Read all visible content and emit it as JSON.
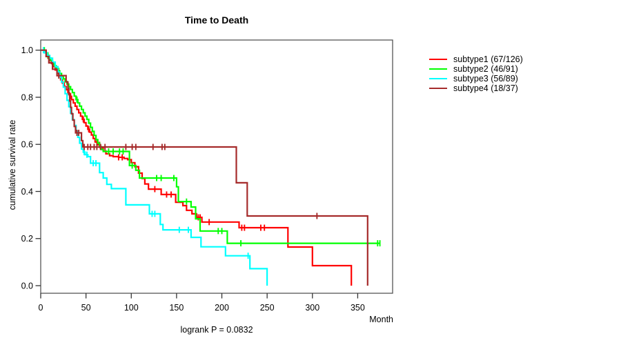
{
  "chart_data": {
    "type": "line",
    "title": "Time to Death",
    "subtitle": "logrank P = 0.0832",
    "xlabel": "Month",
    "ylabel": "cumulative survival rate",
    "x_ticks": [
      "0",
      "50",
      "100",
      "150",
      "200",
      "250",
      "300",
      "350"
    ],
    "y_ticks": [
      "0.0",
      "0.2",
      "0.4",
      "0.6",
      "0.8",
      "1.0"
    ],
    "xlim": [
      0,
      388
    ],
    "ylim": [
      0.0,
      1.0
    ],
    "grid": false,
    "legend_position": "right-outside",
    "curve_style": "kaplan-meier-steps",
    "series": [
      {
        "name": "subtype1",
        "label": "subtype1 (67/126)",
        "color": "#ff0000",
        "steps": [
          [
            0,
            1.0
          ],
          [
            4,
            0.99
          ],
          [
            6,
            0.976
          ],
          [
            8,
            0.966
          ],
          [
            10,
            0.955
          ],
          [
            12,
            0.943
          ],
          [
            14,
            0.93
          ],
          [
            16,
            0.916
          ],
          [
            18,
            0.902
          ],
          [
            20,
            0.888
          ],
          [
            22,
            0.874
          ],
          [
            24,
            0.86
          ],
          [
            26,
            0.846
          ],
          [
            28,
            0.832
          ],
          [
            30,
            0.818
          ],
          [
            32,
            0.804
          ],
          [
            34,
            0.79
          ],
          [
            36,
            0.776
          ],
          [
            38,
            0.762
          ],
          [
            40,
            0.748
          ],
          [
            42,
            0.734
          ],
          [
            44,
            0.72
          ],
          [
            46,
            0.706
          ],
          [
            48,
            0.692
          ],
          [
            50,
            0.678
          ],
          [
            52,
            0.664
          ],
          [
            54,
            0.652
          ],
          [
            56,
            0.64
          ],
          [
            58,
            0.625
          ],
          [
            60,
            0.61
          ],
          [
            63,
            0.598
          ],
          [
            66,
            0.585
          ],
          [
            69,
            0.572
          ],
          [
            72,
            0.56
          ],
          [
            76,
            0.552
          ],
          [
            80,
            0.548
          ],
          [
            86,
            0.545
          ],
          [
            92,
            0.54
          ],
          [
            96,
            0.535
          ],
          [
            100,
            0.522
          ],
          [
            104,
            0.505
          ],
          [
            108,
            0.478
          ],
          [
            112,
            0.455
          ],
          [
            115,
            0.432
          ],
          [
            119,
            0.41
          ],
          [
            133,
            0.387
          ],
          [
            149,
            0.354
          ],
          [
            157,
            0.34
          ],
          [
            161,
            0.32
          ],
          [
            167,
            0.305
          ],
          [
            172,
            0.29
          ],
          [
            178,
            0.27
          ],
          [
            219,
            0.246
          ],
          [
            273,
            0.164
          ],
          [
            300,
            0.085
          ],
          [
            343,
            0.0
          ]
        ],
        "censors": [
          [
            33,
            0.804
          ],
          [
            47,
            0.706
          ],
          [
            53,
            0.664
          ],
          [
            62,
            0.61
          ],
          [
            65,
            0.598
          ],
          [
            86,
            0.545
          ],
          [
            90,
            0.545
          ],
          [
            126,
            0.41
          ],
          [
            139,
            0.387
          ],
          [
            144,
            0.387
          ],
          [
            174,
            0.29
          ],
          [
            176,
            0.29
          ],
          [
            186,
            0.27
          ],
          [
            222,
            0.246
          ],
          [
            225,
            0.246
          ],
          [
            243,
            0.246
          ],
          [
            247,
            0.246
          ]
        ]
      },
      {
        "name": "subtype2",
        "label": "subtype2 (46/91)",
        "color": "#00ff00",
        "steps": [
          [
            0,
            1.0
          ],
          [
            5,
            0.989
          ],
          [
            7,
            0.978
          ],
          [
            9,
            0.967
          ],
          [
            11,
            0.956
          ],
          [
            13,
            0.945
          ],
          [
            15,
            0.934
          ],
          [
            17,
            0.923
          ],
          [
            19,
            0.912
          ],
          [
            21,
            0.901
          ],
          [
            23,
            0.89
          ],
          [
            25,
            0.878
          ],
          [
            27,
            0.867
          ],
          [
            29,
            0.856
          ],
          [
            31,
            0.845
          ],
          [
            33,
            0.833
          ],
          [
            35,
            0.82
          ],
          [
            37,
            0.805
          ],
          [
            39,
            0.79
          ],
          [
            41,
            0.776
          ],
          [
            43,
            0.762
          ],
          [
            45,
            0.748
          ],
          [
            47,
            0.734
          ],
          [
            49,
            0.72
          ],
          [
            51,
            0.706
          ],
          [
            53,
            0.69
          ],
          [
            55,
            0.672
          ],
          [
            57,
            0.655
          ],
          [
            59,
            0.638
          ],
          [
            61,
            0.62
          ],
          [
            63,
            0.605
          ],
          [
            65,
            0.59
          ],
          [
            67,
            0.578
          ],
          [
            69,
            0.57
          ],
          [
            98,
            0.51
          ],
          [
            105,
            0.49
          ],
          [
            109,
            0.457
          ],
          [
            150,
            0.42
          ],
          [
            152,
            0.357
          ],
          [
            166,
            0.334
          ],
          [
            171,
            0.284
          ],
          [
            176,
            0.232
          ],
          [
            206,
            0.18
          ],
          [
            374,
            0.18
          ]
        ],
        "censors": [
          [
            4,
            1.0
          ],
          [
            8,
            0.978
          ],
          [
            20,
            0.912
          ],
          [
            40,
            0.79
          ],
          [
            75,
            0.57
          ],
          [
            80,
            0.57
          ],
          [
            87,
            0.57
          ],
          [
            91,
            0.57
          ],
          [
            101,
            0.51
          ],
          [
            128,
            0.457
          ],
          [
            133,
            0.457
          ],
          [
            147,
            0.457
          ],
          [
            161,
            0.357
          ],
          [
            196,
            0.232
          ],
          [
            200,
            0.232
          ],
          [
            221,
            0.18
          ],
          [
            372,
            0.18
          ],
          [
            374.5,
            0.18
          ]
        ]
      },
      {
        "name": "subtype3",
        "label": "subtype3 (56/89)",
        "color": "#00ffff",
        "steps": [
          [
            0,
            1.0
          ],
          [
            4,
            0.989
          ],
          [
            7,
            0.977
          ],
          [
            10,
            0.966
          ],
          [
            13,
            0.949
          ],
          [
            16,
            0.93
          ],
          [
            19,
            0.907
          ],
          [
            21,
            0.886
          ],
          [
            23,
            0.865
          ],
          [
            25,
            0.843
          ],
          [
            27,
            0.815
          ],
          [
            29,
            0.787
          ],
          [
            31,
            0.76
          ],
          [
            33,
            0.732
          ],
          [
            35,
            0.705
          ],
          [
            37,
            0.68
          ],
          [
            39,
            0.655
          ],
          [
            41,
            0.63
          ],
          [
            43,
            0.605
          ],
          [
            45,
            0.58
          ],
          [
            47,
            0.567
          ],
          [
            49,
            0.556
          ],
          [
            52,
            0.548
          ],
          [
            55,
            0.52
          ],
          [
            65,
            0.48
          ],
          [
            69,
            0.457
          ],
          [
            73,
            0.43
          ],
          [
            78,
            0.412
          ],
          [
            94,
            0.343
          ],
          [
            120,
            0.305
          ],
          [
            132,
            0.26
          ],
          [
            135,
            0.237
          ],
          [
            166,
            0.205
          ],
          [
            177,
            0.165
          ],
          [
            204,
            0.127
          ],
          [
            231,
            0.072
          ],
          [
            250,
            0.0
          ]
        ],
        "censors": [
          [
            3,
            1.0
          ],
          [
            48,
            0.567
          ],
          [
            51,
            0.556
          ],
          [
            58,
            0.52
          ],
          [
            61,
            0.52
          ],
          [
            123,
            0.305
          ],
          [
            126,
            0.305
          ],
          [
            153,
            0.237
          ],
          [
            163,
            0.237
          ],
          [
            229,
            0.127
          ]
        ]
      },
      {
        "name": "subtype4",
        "label": "subtype4 (18/37)",
        "color": "#a52a2a",
        "steps": [
          [
            0,
            1.0
          ],
          [
            6,
            0.973
          ],
          [
            9,
            0.946
          ],
          [
            13,
            0.919
          ],
          [
            18,
            0.892
          ],
          [
            28,
            0.865
          ],
          [
            30,
            0.838
          ],
          [
            31,
            0.811
          ],
          [
            32,
            0.784
          ],
          [
            33,
            0.757
          ],
          [
            34,
            0.73
          ],
          [
            35.5,
            0.703
          ],
          [
            37,
            0.676
          ],
          [
            38.5,
            0.649
          ],
          [
            45,
            0.616
          ],
          [
            46.5,
            0.589
          ],
          [
            216,
            0.437
          ],
          [
            228,
            0.296
          ],
          [
            361,
            0.0
          ]
        ],
        "censors": [
          [
            20,
            0.892
          ],
          [
            40,
            0.649
          ],
          [
            42,
            0.649
          ],
          [
            48,
            0.589
          ],
          [
            52,
            0.589
          ],
          [
            55,
            0.589
          ],
          [
            59,
            0.589
          ],
          [
            62,
            0.589
          ],
          [
            66,
            0.589
          ],
          [
            71,
            0.589
          ],
          [
            94,
            0.589
          ],
          [
            101,
            0.589
          ],
          [
            105,
            0.589
          ],
          [
            124,
            0.589
          ],
          [
            134,
            0.589
          ],
          [
            137,
            0.589
          ],
          [
            305,
            0.296
          ]
        ]
      }
    ]
  }
}
